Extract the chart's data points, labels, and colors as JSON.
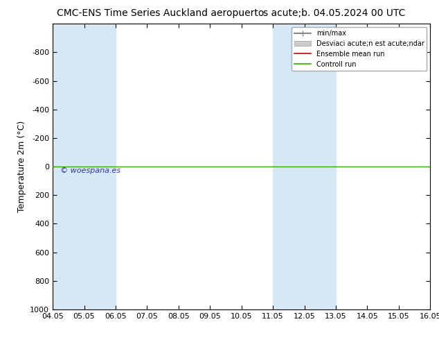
{
  "title_left": "CMC-ENS Time Series Auckland aeropuerto",
  "title_right": "s acute;b. 04.05.2024 00 UTC",
  "ylabel": "Temperature 2m (°C)",
  "ylim": [
    -1000,
    1000
  ],
  "yticks": [
    -800,
    -600,
    -400,
    -200,
    0,
    200,
    400,
    600,
    800,
    1000
  ],
  "xticks": [
    "04.05",
    "05.05",
    "06.05",
    "07.05",
    "08.05",
    "09.05",
    "10.05",
    "11.05",
    "12.05",
    "13.05",
    "14.05",
    "15.05",
    "16.05"
  ],
  "shaded_ranges": [
    [
      0,
      2
    ],
    [
      7,
      9
    ]
  ],
  "shaded_color": "#d6e8f5",
  "bg_color": "#ffffff",
  "plot_bg_color": "#ffffff",
  "green_line_y": 0,
  "watermark": "© woespana.es",
  "watermark_color": "#3333aa",
  "legend_items": [
    "min/max",
    "Desviaci acute;n est acute;ndar",
    "Ensemble mean run",
    "Controll run"
  ],
  "legend_line_color": "#888888",
  "legend_patch_color": "#cccccc",
  "ensemble_color": "#cc0000",
  "control_color": "#33aa00",
  "green_line_color": "#33aa00"
}
